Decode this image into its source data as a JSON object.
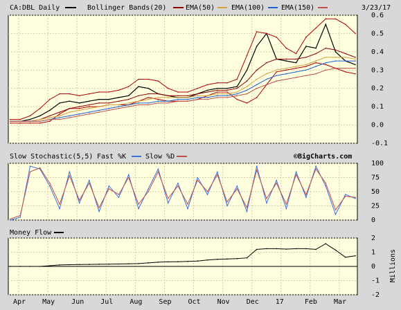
{
  "header": {
    "symbol_label": "CA:DBL Daily",
    "bands_label": "Bollinger Bands(20)",
    "ema50_label": "EMA(50)",
    "ema100_label": "EMA(100)",
    "ema150_label": "EMA(150)",
    "date": "3/23/17"
  },
  "stoch_header": {
    "title": "Slow Stochastic(5,5)",
    "fast_label": "Fast %K",
    "slow_label": "Slow %D",
    "watermark": "©BigCharts.com"
  },
  "mf_header": {
    "title": "Money Flow",
    "unit": "Millions"
  },
  "colors": {
    "panel_bg": "#ffffe0",
    "price": "#000000",
    "bollinger": "#aa0000",
    "ema50": "#8b0000",
    "ema100": "#d4a040",
    "ema150": "#1f5fd6",
    "red_line": "#c0504d",
    "fast_k": "#3a6fe0",
    "slow_d": "#c0504d"
  },
  "chart_data": [
    {
      "type": "line",
      "title": "CA:DBL Daily",
      "x_ticks": [
        "Apr",
        "May",
        "Jun",
        "Jul",
        "Aug",
        "Sep",
        "Oct",
        "Nov",
        "Dec",
        "17",
        "Feb",
        "Mar"
      ],
      "y_ticks": [
        "0.6",
        "0.5",
        "0.4",
        "0.3",
        "0.2",
        "0.1",
        "0.0",
        "-0.1"
      ],
      "ylim": [
        -0.1,
        0.6
      ],
      "grid": true,
      "series": [
        {
          "name": "CA:DBL Daily",
          "values": [
            0.02,
            0.02,
            0.03,
            0.05,
            0.08,
            0.12,
            0.13,
            0.12,
            0.13,
            0.14,
            0.14,
            0.15,
            0.16,
            0.21,
            0.2,
            0.17,
            0.16,
            0.15,
            0.15,
            0.17,
            0.19,
            0.2,
            0.2,
            0.21,
            0.3,
            0.43,
            0.5,
            0.36,
            0.35,
            0.34,
            0.43,
            0.42,
            0.55,
            0.4,
            0.35,
            0.33
          ]
        },
        {
          "name": "Bollinger Bands(20)",
          "values": [
            0.03,
            0.03,
            0.05,
            0.09,
            0.14,
            0.17,
            0.17,
            0.16,
            0.17,
            0.18,
            0.18,
            0.19,
            0.21,
            0.25,
            0.25,
            0.24,
            0.2,
            0.18,
            0.18,
            0.2,
            0.22,
            0.23,
            0.23,
            0.25,
            0.38,
            0.51,
            0.5,
            0.48,
            0.42,
            0.39,
            0.48,
            0.53,
            0.58,
            0.58,
            0.55,
            0.5
          ]
        },
        {
          "name": "Bollinger Bands(20)",
          "values": [
            0.01,
            0.01,
            0.01,
            0.01,
            0.02,
            0.06,
            0.09,
            0.09,
            0.1,
            0.1,
            0.11,
            0.11,
            0.11,
            0.13,
            0.15,
            0.14,
            0.13,
            0.13,
            0.13,
            0.14,
            0.16,
            0.18,
            0.18,
            0.14,
            0.12,
            0.15,
            0.22,
            0.29,
            0.3,
            0.31,
            0.32,
            0.34,
            0.33,
            0.31,
            0.29,
            0.28
          ]
        },
        {
          "name": "EMA(50)",
          "values": [
            0.02,
            0.02,
            0.02,
            0.03,
            0.05,
            0.07,
            0.09,
            0.1,
            0.11,
            0.12,
            0.12,
            0.13,
            0.14,
            0.16,
            0.17,
            0.17,
            0.16,
            0.16,
            0.16,
            0.17,
            0.18,
            0.19,
            0.19,
            0.2,
            0.24,
            0.3,
            0.34,
            0.36,
            0.36,
            0.36,
            0.37,
            0.39,
            0.42,
            0.41,
            0.39,
            0.37
          ]
        },
        {
          "name": "EMA(100)",
          "values": [
            0.02,
            0.02,
            0.02,
            0.03,
            0.04,
            0.05,
            0.07,
            0.08,
            0.09,
            0.1,
            0.11,
            0.11,
            0.12,
            0.13,
            0.14,
            0.15,
            0.15,
            0.15,
            0.15,
            0.16,
            0.16,
            0.17,
            0.17,
            0.18,
            0.21,
            0.25,
            0.28,
            0.3,
            0.31,
            0.32,
            0.33,
            0.35,
            0.37,
            0.37,
            0.37,
            0.36
          ]
        },
        {
          "name": "EMA(150)",
          "values": [
            0.02,
            0.02,
            0.02,
            0.02,
            0.03,
            0.04,
            0.05,
            0.06,
            0.07,
            0.08,
            0.09,
            0.1,
            0.11,
            0.12,
            0.12,
            0.13,
            0.13,
            0.14,
            0.14,
            0.15,
            0.15,
            0.16,
            0.16,
            0.17,
            0.19,
            0.22,
            0.25,
            0.27,
            0.28,
            0.29,
            0.3,
            0.32,
            0.34,
            0.35,
            0.35,
            0.35
          ]
        },
        {
          "values": [
            0.02,
            0.02,
            0.02,
            0.02,
            0.03,
            0.03,
            0.04,
            0.05,
            0.06,
            0.07,
            0.08,
            0.09,
            0.1,
            0.11,
            0.11,
            0.12,
            0.12,
            0.13,
            0.13,
            0.14,
            0.14,
            0.15,
            0.15,
            0.16,
            0.17,
            0.2,
            0.22,
            0.24,
            0.25,
            0.26,
            0.27,
            0.28,
            0.3,
            0.31,
            0.31,
            0.31
          ]
        }
      ]
    },
    {
      "type": "line",
      "title": "Slow Stochastic(5,5)",
      "x_ticks": [
        "Apr",
        "May",
        "Jun",
        "Jul",
        "Aug",
        "Sep",
        "Oct",
        "Nov",
        "Dec",
        "17",
        "Feb",
        "Mar"
      ],
      "y_ticks": [
        "100",
        "75",
        "50",
        "25",
        "0"
      ],
      "ylim": [
        0,
        100
      ],
      "grid": true,
      "series": [
        {
          "name": "Fast %K",
          "values": [
            0,
            5,
            95,
            90,
            60,
            20,
            85,
            30,
            70,
            15,
            60,
            40,
            80,
            20,
            55,
            90,
            30,
            65,
            20,
            75,
            45,
            85,
            25,
            60,
            15,
            95,
            30,
            70,
            20,
            85,
            40,
            95,
            60,
            10,
            45,
            38
          ]
        },
        {
          "name": "Slow %D",
          "values": [
            2,
            8,
            85,
            92,
            65,
            28,
            78,
            35,
            65,
            22,
            55,
            45,
            75,
            28,
            50,
            85,
            38,
            60,
            28,
            70,
            50,
            80,
            32,
            55,
            22,
            88,
            38,
            65,
            28,
            80,
            45,
            90,
            65,
            18,
            42,
            40
          ]
        }
      ]
    },
    {
      "type": "line",
      "title": "Money Flow",
      "x_ticks": [
        "Apr",
        "May",
        "Jun",
        "Jul",
        "Aug",
        "Sep",
        "Oct",
        "Nov",
        "Dec",
        "17",
        "Feb",
        "Mar"
      ],
      "y_ticks": [
        "2",
        "1",
        "0",
        "-1",
        "-2"
      ],
      "ylim": [
        -2,
        2
      ],
      "ylabel": "Millions",
      "series": [
        {
          "name": "Money Flow",
          "values": [
            0,
            0,
            0,
            0,
            0.05,
            0.1,
            0.12,
            0.13,
            0.14,
            0.15,
            0.16,
            0.17,
            0.18,
            0.2,
            0.25,
            0.3,
            0.32,
            0.33,
            0.35,
            0.38,
            0.45,
            0.5,
            0.52,
            0.55,
            0.6,
            1.2,
            1.25,
            1.25,
            1.22,
            1.25,
            1.25,
            1.2,
            1.6,
            1.15,
            0.65,
            0.75
          ]
        }
      ]
    }
  ]
}
